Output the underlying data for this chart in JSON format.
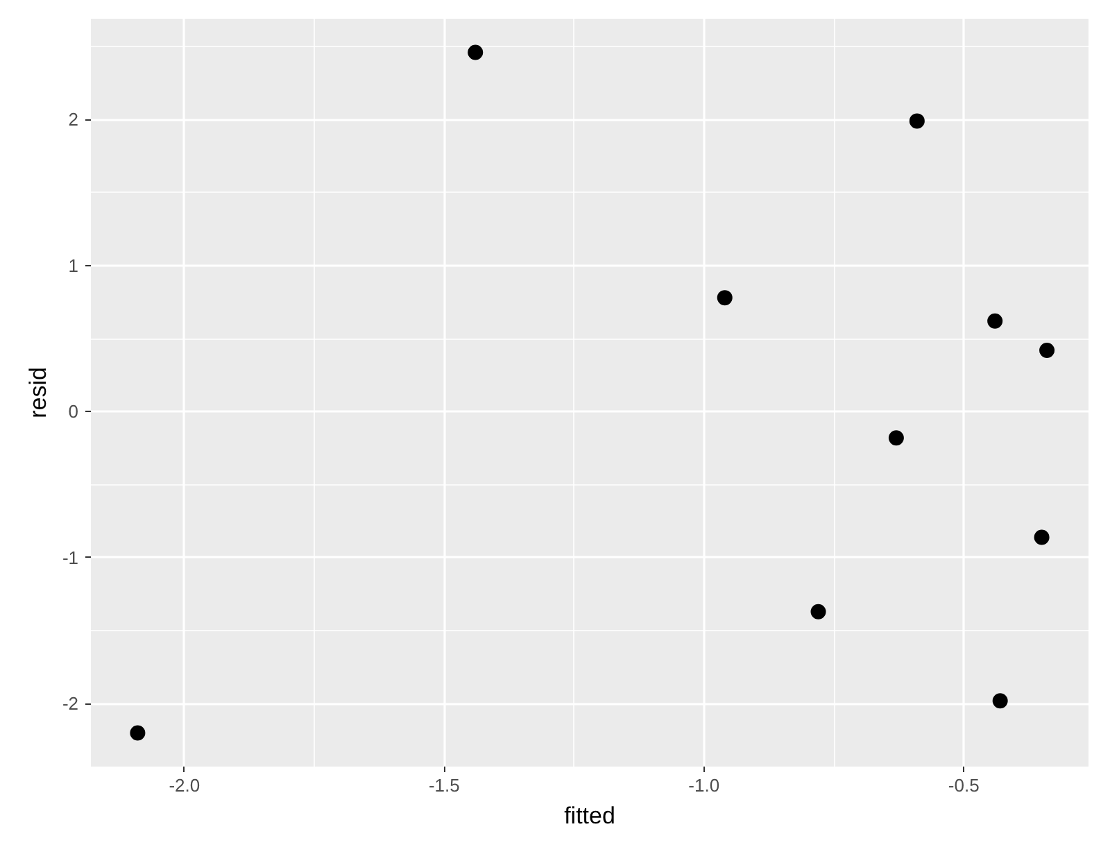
{
  "chart_data": {
    "type": "scatter",
    "xlabel": "fitted",
    "ylabel": "resid",
    "x": [
      -2.09,
      -1.44,
      -0.59,
      -0.96,
      -0.44,
      -0.34,
      -0.78,
      -0.63,
      -0.35,
      -0.43
    ],
    "series": [
      {
        "color": "#000000",
        "values": [
          -2.2,
          2.46,
          1.99,
          0.78,
          0.62,
          0.42,
          -1.37,
          -0.18,
          -0.86,
          -1.98
        ]
      }
    ],
    "xlim": [
      -2.18,
      -0.26
    ],
    "ylim": [
      -2.43,
      2.69
    ],
    "xticks": [
      {
        "value": -2.0,
        "label": "-2.0"
      },
      {
        "value": -1.5,
        "label": "-1.5"
      },
      {
        "value": -1.0,
        "label": "-1.0"
      },
      {
        "value": -0.5,
        "label": "-0.5"
      }
    ],
    "yticks": [
      -2,
      -1,
      0,
      1,
      2
    ],
    "grid": true,
    "marker": "circle"
  }
}
